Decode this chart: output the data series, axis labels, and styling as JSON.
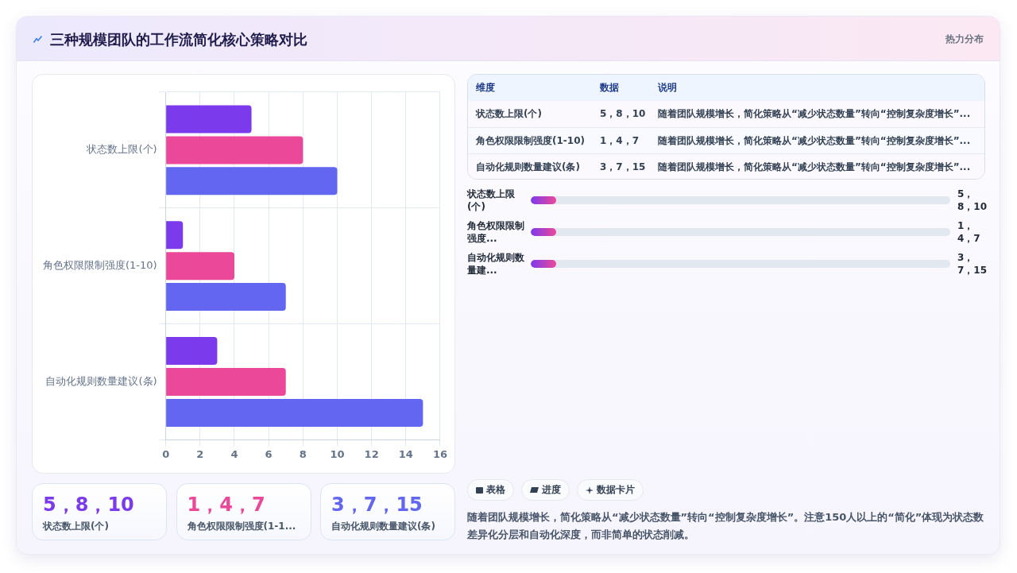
{
  "chart_data": {
    "type": "bar",
    "title": "三种规模团队的工作流简化核心策略对比",
    "orientation": "horizontal",
    "categories": [
      "状态数上限(个)",
      "角色权限限制强度(1-10)",
      "自动化规则数量建议(条)"
    ],
    "series": [
      {
        "color": "#7c3aed",
        "values": [
          5,
          1,
          3
        ]
      },
      {
        "color": "#ec4899",
        "values": [
          8,
          4,
          7
        ]
      },
      {
        "color": "#6366f1",
        "values": [
          10,
          7,
          15
        ]
      }
    ],
    "xlim": [
      0,
      16
    ],
    "xticks": [
      0,
      2,
      4,
      6,
      8,
      10,
      12,
      14,
      16
    ],
    "grid": true,
    "annotations": [
      "热力分布",
      "维度",
      "数据",
      "说明",
      "5，8，10",
      "1，4，7",
      "3，7，15",
      "随着团队规模增长，简化策略从“减少状态数量”转向“控制复杂度增长”...",
      "状态数上限(个)",
      "角色权限限制强度...",
      "自动化规则数量建...",
      "状态数上限(个)",
      "角色权限限制强度(1-1...",
      "自动化规则数量建议(条)",
      "表格",
      "进度",
      "数据卡片",
      "随着团队规模增长，简化策略从“减少状态数量”转向“控制复杂度增长”。注意150人以上的“简化”体现为状态数差异化分层和自动化深度，而非简单的状态削减。"
    ]
  }
}
